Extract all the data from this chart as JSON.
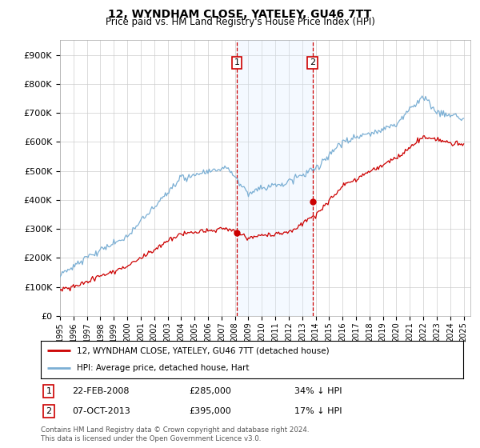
{
  "title": "12, WYNDHAM CLOSE, YATELEY, GU46 7TT",
  "subtitle": "Price paid vs. HM Land Registry's House Price Index (HPI)",
  "yticks": [
    0,
    100000,
    200000,
    300000,
    400000,
    500000,
    600000,
    700000,
    800000,
    900000
  ],
  "ytick_labels": [
    "£0",
    "£100K",
    "£200K",
    "£300K",
    "£400K",
    "£500K",
    "£600K",
    "£700K",
    "£800K",
    "£900K"
  ],
  "hpi_color": "#7bafd4",
  "price_color": "#cc0000",
  "vline_color": "#cc0000",
  "shade_color": "#ddeeff",
  "transaction_1": {
    "date_num": 2008.13,
    "price": 285000,
    "label": "1",
    "date_str": "22-FEB-2008",
    "pct": "34% ↓ HPI"
  },
  "transaction_2": {
    "date_num": 2013.76,
    "price": 395000,
    "label": "2",
    "date_str": "07-OCT-2013",
    "pct": "17% ↓ HPI"
  },
  "legend_line1": "12, WYNDHAM CLOSE, YATELEY, GU46 7TT (detached house)",
  "legend_line2": "HPI: Average price, detached house, Hart",
  "footer": "Contains HM Land Registry data © Crown copyright and database right 2024.\nThis data is licensed under the Open Government Licence v3.0.",
  "background_color": "#ffffff"
}
